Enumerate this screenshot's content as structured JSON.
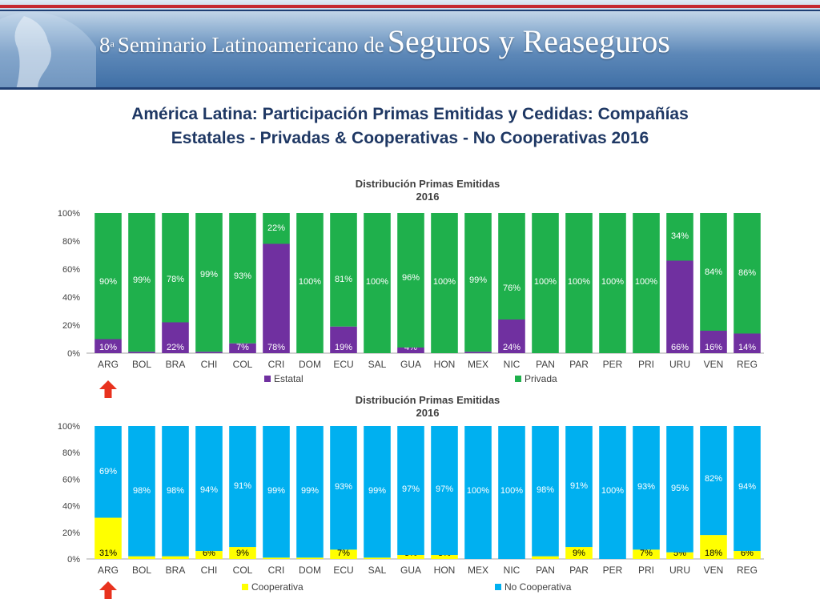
{
  "header": {
    "ordinal": "8",
    "ordinal_sup": "a",
    "title_small": "Seminario Latinoamericano de",
    "title_big": "Seguros y Reaseguros",
    "title_line1": "América Latina: Participación Primas Emitidas y Cedidas: Compañías",
    "title_line2": "Estatales - Privadas & Cooperativas - No Cooperativas 2016"
  },
  "colors": {
    "green": "#1fb04c",
    "purple": "#7030a0",
    "blue": "#00b0f0",
    "yellow": "#ffff00",
    "title": "#1f3864",
    "arrow": "#e8321e"
  },
  "icons": [
    "up-arrow-icon",
    "up-arrow-icon"
  ],
  "chart_data": [
    {
      "type": "bar",
      "stacked": true,
      "title": "Distribución Primas Emitidas",
      "subtitle": "2016",
      "categories": [
        "ARG",
        "BOL",
        "BRA",
        "CHI",
        "COL",
        "CRI",
        "DOM",
        "ECU",
        "SAL",
        "GUA",
        "HON",
        "MEX",
        "NIC",
        "PAN",
        "PAR",
        "PER",
        "PRI",
        "URU",
        "VEN",
        "REG"
      ],
      "yticks": [
        "0%",
        "20%",
        "40%",
        "60%",
        "80%",
        "100%"
      ],
      "ylim": [
        0,
        100
      ],
      "grid": false,
      "legend_position": "bottom",
      "series": [
        {
          "name": "Estatal",
          "color": "#7030a0",
          "values": [
            10,
            1,
            22,
            1,
            7,
            78,
            0,
            19,
            0,
            4,
            0,
            1,
            24,
            0,
            0,
            0,
            0,
            66,
            16,
            14
          ],
          "labels": [
            "10%",
            "1%",
            "22%",
            "1%",
            "7%",
            "78%",
            "",
            "19%",
            "",
            "4%",
            "",
            "1%",
            "24%",
            "",
            "",
            "",
            "",
            "66%",
            "16%",
            "14%"
          ]
        },
        {
          "name": "Privada",
          "color": "#1fb04c",
          "values": [
            90,
            99,
            78,
            99,
            93,
            22,
            100,
            81,
            100,
            96,
            100,
            99,
            76,
            100,
            100,
            100,
            100,
            34,
            84,
            86
          ],
          "labels": [
            "90%",
            "99%",
            "78%",
            "99%",
            "93%",
            "22%",
            "100%",
            "81%",
            "100%",
            "96%",
            "100%",
            "99%",
            "76%",
            "100%",
            "100%",
            "100%",
            "100%",
            "34%",
            "84%",
            "86%"
          ]
        }
      ]
    },
    {
      "type": "bar",
      "stacked": true,
      "title": "Distribución Primas Emitidas",
      "subtitle": "2016",
      "categories": [
        "ARG",
        "BOL",
        "BRA",
        "CHI",
        "COL",
        "CRI",
        "DOM",
        "ECU",
        "SAL",
        "GUA",
        "HON",
        "MEX",
        "NIC",
        "PAN",
        "PAR",
        "PER",
        "PRI",
        "URU",
        "VEN",
        "REG"
      ],
      "yticks": [
        "0%",
        "20%",
        "40%",
        "60%",
        "80%",
        "100%"
      ],
      "ylim": [
        0,
        100
      ],
      "grid": false,
      "legend_position": "bottom",
      "series": [
        {
          "name": "Cooperativa",
          "color": "#ffff00",
          "values": [
            31,
            2,
            2,
            6,
            9,
            1,
            1,
            7,
            1,
            3,
            3,
            0,
            0,
            2,
            9,
            0,
            7,
            5,
            18,
            6
          ],
          "labels": [
            "31%",
            "2%",
            "2%",
            "6%",
            "9%",
            "1%",
            "1%",
            "7%",
            "1%",
            "3%",
            "3%",
            "0%",
            "0%",
            "2%",
            "9%",
            "0%",
            "7%",
            "5%",
            "18%",
            "6%"
          ]
        },
        {
          "name": "No Cooperativa",
          "color": "#00b0f0",
          "values": [
            69,
            98,
            98,
            94,
            91,
            99,
            99,
            93,
            99,
            97,
            97,
            100,
            100,
            98,
            91,
            100,
            93,
            95,
            82,
            94
          ],
          "labels": [
            "69%",
            "98%",
            "98%",
            "94%",
            "91%",
            "99%",
            "99%",
            "93%",
            "99%",
            "97%",
            "97%",
            "100%",
            "100%",
            "98%",
            "91%",
            "100%",
            "93%",
            "95%",
            "82%",
            "94%"
          ]
        }
      ]
    }
  ]
}
